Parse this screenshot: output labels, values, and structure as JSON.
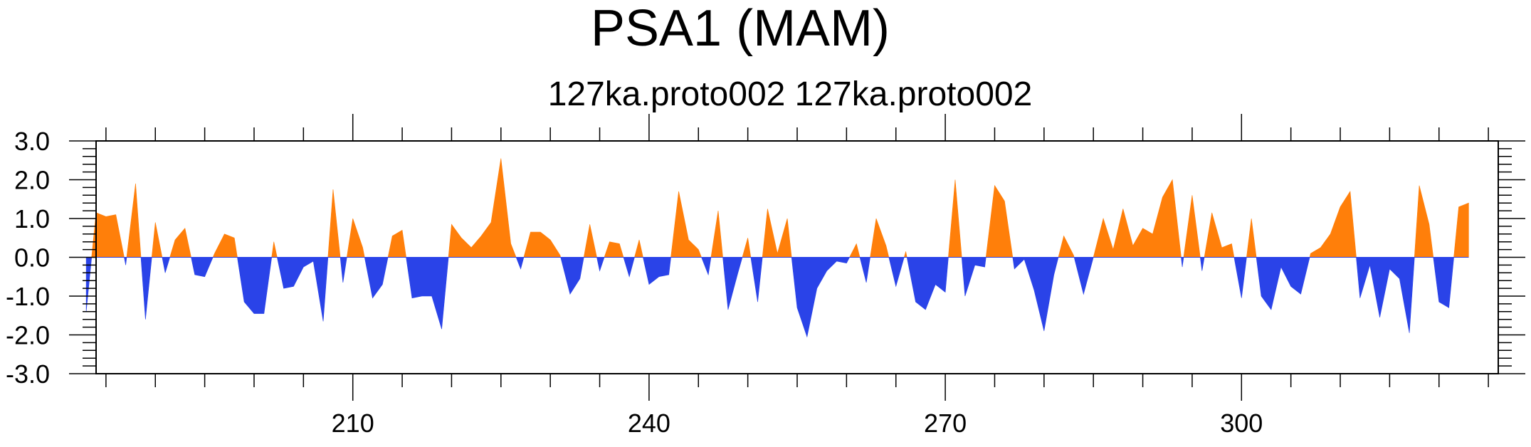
{
  "chart_data": {
    "type": "area",
    "title": "PSA1 (MAM)",
    "subtitle": "127ka.proto002  127ka.proto002",
    "xlabel": "",
    "ylabel": "",
    "xlim": [
      184,
      326
    ],
    "ylim": [
      -3.0,
      3.0
    ],
    "x_ticks": [
      210,
      240,
      270,
      300
    ],
    "x_tick_labels": [
      "210",
      "240",
      "270",
      "300"
    ],
    "y_ticks": [
      -3.0,
      -2.0,
      -1.0,
      0.0,
      1.0,
      2.0,
      3.0
    ],
    "y_tick_labels": [
      "-3.0",
      "-2.0",
      "-1.0",
      "0.0",
      "1.0",
      "2.0",
      "3.0"
    ],
    "grid": false,
    "fill_colors": {
      "positive": "#ff7f0a",
      "negative": "#2a43e8"
    },
    "x_start": 183,
    "x_step": 1,
    "values": [
      -1.4,
      1.15,
      1.05,
      1.1,
      -0.2,
      1.9,
      -1.6,
      0.9,
      -0.4,
      0.45,
      0.75,
      -0.45,
      -0.5,
      0.1,
      0.6,
      0.5,
      -1.15,
      -1.45,
      -1.45,
      0.4,
      -0.8,
      -0.75,
      -0.25,
      -0.1,
      -1.65,
      1.75,
      -0.65,
      1.0,
      0.25,
      -1.05,
      -0.7,
      0.55,
      0.7,
      -1.05,
      -1.0,
      -1.0,
      -1.85,
      0.85,
      0.5,
      0.25,
      0.55,
      0.9,
      2.55,
      0.35,
      -0.3,
      0.65,
      0.65,
      0.45,
      0.05,
      -0.95,
      -0.55,
      0.85,
      -0.35,
      0.4,
      0.35,
      -0.5,
      0.45,
      -0.7,
      -0.5,
      -0.45,
      1.7,
      0.45,
      0.2,
      -0.45,
      1.2,
      -1.35,
      -0.4,
      0.5,
      -1.15,
      1.25,
      0.1,
      1.0,
      -1.3,
      -2.05,
      -0.8,
      -0.35,
      -0.1,
      -0.15,
      0.35,
      -0.65,
      1.0,
      0.3,
      -0.75,
      0.15,
      -1.15,
      -1.35,
      -0.7,
      -0.9,
      2.0,
      -1.0,
      -0.2,
      -0.25,
      1.85,
      1.45,
      -0.3,
      -0.05,
      -0.85,
      -1.9,
      -0.45,
      0.55,
      0.05,
      -0.95,
      0.0,
      1.0,
      0.2,
      1.25,
      0.3,
      0.75,
      0.6,
      1.55,
      2.0,
      -0.25,
      1.6,
      -0.35,
      1.15,
      0.25,
      0.35,
      -1.05,
      1.0,
      -1.0,
      -1.35,
      -0.25,
      -0.75,
      -0.95,
      0.1,
      0.25,
      0.6,
      1.3,
      1.7,
      -1.05,
      -0.2,
      -1.55,
      -0.3,
      -0.55,
      -1.95,
      1.85,
      0.85,
      -1.15,
      -1.3,
      1.3,
      1.4
    ]
  }
}
